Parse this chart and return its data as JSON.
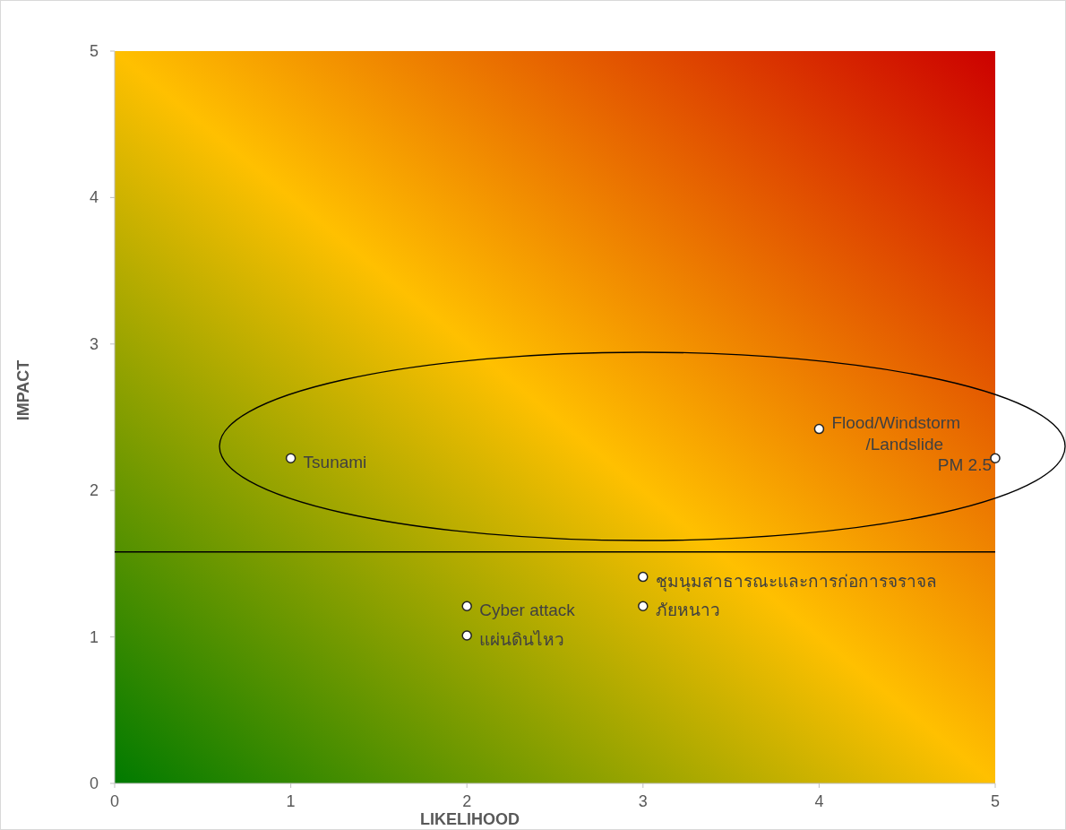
{
  "chart_data": {
    "type": "scatter",
    "xlabel": "LIKELIHOOD",
    "ylabel": "IMPACT",
    "xlim": [
      0,
      5
    ],
    "ylim": [
      0,
      5
    ],
    "xticks": [
      0,
      1,
      2,
      3,
      4,
      5
    ],
    "yticks": [
      0,
      1,
      2,
      3,
      4,
      5
    ],
    "grid": false,
    "marker": "circle",
    "series": [
      {
        "color": "#ffffff",
        "x": [
          1,
          4,
          5,
          3,
          3,
          2,
          2
        ],
        "values": [
          2.22,
          2.42,
          2.22,
          1.41,
          1.21,
          1.21,
          1.01
        ]
      }
    ],
    "annotations": [
      {
        "text": "Tsunami",
        "x": 1,
        "y": 2.22
      },
      {
        "text": "Flood/Windstorm\n/Landslide",
        "x": 4,
        "y": 2.42
      },
      {
        "text": "PM 2.5",
        "x": 5,
        "y": 2.22
      },
      {
        "text": "ชุมนุมสาธารณะและการก่อการจราจล",
        "x": 3,
        "y": 1.41
      },
      {
        "text": "ภัยหนาว",
        "x": 3,
        "y": 1.21
      },
      {
        "text": "Cyber attack",
        "x": 2,
        "y": 1.21
      },
      {
        "text": "แผ่นดินไหว",
        "x": 2,
        "y": 1.01
      }
    ],
    "ref_lines": [
      {
        "axis": "y",
        "value": 1.58,
        "label": null,
        "color": "#000000"
      }
    ]
  }
}
